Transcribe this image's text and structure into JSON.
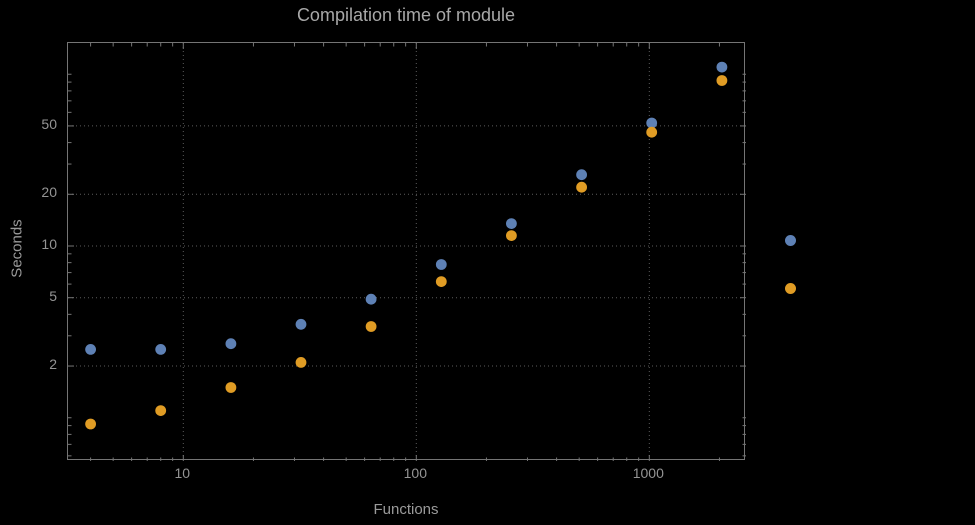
{
  "chart_data": {
    "type": "scatter",
    "title": "Compilation time of module",
    "xlabel": "Functions",
    "ylabel": "Seconds",
    "x_scale": "log",
    "y_scale": "log",
    "grid": true,
    "xlim": [
      3.2,
      2600
    ],
    "ylim": [
      0.56,
      152
    ],
    "x_ticks": [
      10,
      100,
      1000
    ],
    "x_tick_labels": [
      "10",
      "100",
      "1000"
    ],
    "y_ticks": [
      2,
      5,
      10,
      20,
      50
    ],
    "y_tick_labels": [
      "2",
      "5",
      "10",
      "20",
      "50"
    ],
    "x_minor_ticks": [
      4,
      5,
      6,
      7,
      8,
      9,
      20,
      30,
      40,
      50,
      60,
      70,
      80,
      90,
      200,
      300,
      400,
      500,
      600,
      700,
      800,
      900,
      2000
    ],
    "y_minor_ticks": [
      0.6,
      0.7,
      0.8,
      0.9,
      1,
      3,
      4,
      6,
      7,
      8,
      9,
      30,
      40,
      60,
      70,
      80,
      90,
      100
    ],
    "x": [
      4,
      8,
      16,
      32,
      64,
      128,
      256,
      512,
      1024,
      2048
    ],
    "series": [
      {
        "name": "blue",
        "color": "#5E81B5",
        "values": [
          2.5,
          2.5,
          2.7,
          3.5,
          4.9,
          7.8,
          13.5,
          26,
          52,
          110
        ]
      },
      {
        "name": "orange",
        "color": "#E09C24",
        "values": [
          0.92,
          1.1,
          1.5,
          2.1,
          3.4,
          6.2,
          11.5,
          22,
          46,
          92
        ]
      }
    ],
    "legend": {
      "position": "outside-right",
      "labels_visible": false
    }
  },
  "colors": {
    "background": "#000000",
    "frame": "#757575",
    "gridlines": "#9a9a9a",
    "title_text": "#a8a8a8",
    "axis_label_text": "#9a9a9a",
    "tick_label_text": "#949494"
  }
}
